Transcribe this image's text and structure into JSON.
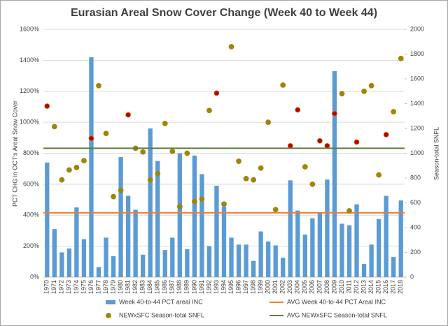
{
  "chart_data": {
    "type": "bar",
    "title": "Eurasian Areal Snow Cover Change (Week 40 to Week 44)",
    "y_label": "PCT CHG in OCT's Areal Snow Cover",
    "y2_label": "Season-total SNFL",
    "categories": [
      "1970",
      "1971",
      "1972",
      "1973",
      "1974",
      "1975",
      "1976",
      "1977",
      "1978",
      "1979",
      "1980",
      "1981",
      "1982",
      "1983",
      "1984",
      "1985",
      "1986",
      "1987",
      "1988",
      "1989",
      "1990",
      "1991",
      "1992",
      "1993",
      "1994",
      "1995",
      "1996",
      "1997",
      "1998",
      "1999",
      "2000",
      "2001",
      "2002",
      "2003",
      "2004",
      "2005",
      "2006",
      "2007",
      "2008",
      "2009",
      "2010",
      "2011",
      "2012",
      "2013",
      "2014",
      "2015",
      "2016",
      "2017",
      "2018"
    ],
    "series": [
      {
        "name": "Week 40-to-44 PCT areal INC",
        "type": "bar",
        "color": "#5b9bd5",
        "values": [
          740,
          310,
          160,
          185,
          450,
          245,
          1420,
          65,
          255,
          135,
          775,
          525,
          435,
          145,
          960,
          750,
          175,
          255,
          800,
          180,
          785,
          665,
          200,
          590,
          455,
          255,
          210,
          210,
          105,
          295,
          230,
          205,
          125,
          625,
          430,
          275,
          380,
          415,
          630,
          1330,
          345,
          335,
          470,
          85,
          210,
          375,
          525,
          130,
          495
        ]
      },
      {
        "name": "AVG Week 40-to-44 PCT Areal INC",
        "type": "hline",
        "color": "#ed7d31",
        "value": 415
      },
      {
        "name": "NEWxSFC Season-total SNFL",
        "type": "scatter",
        "axis": "y2",
        "color": "#8f8f00",
        "colors": [
          "#c00000",
          "#8f8f00",
          "#8f8f00",
          "#8f8f00",
          "#8f8f00",
          "#8f8f00",
          "#c00000",
          "#8f8f00",
          "#8f8f00",
          "#8f8f00",
          "#8f8f00",
          "#c00000",
          "#8f8f00",
          "#8f8f00",
          "#8f8f00",
          "#8f8f00",
          "#8f8f00",
          "#8f8f00",
          "#8f8f00",
          "#8f8f00",
          "#8f8f00",
          "#8f8f00",
          "#8f8f00",
          "#c00000",
          "#8f8f00",
          "#8f8f00",
          "#8f8f00",
          "#8f8f00",
          "#8f8f00",
          "#8f8f00",
          "#8f8f00",
          "#8f8f00",
          "#8f8f00",
          "#c00000",
          "#c00000",
          "#8f8f00",
          "#8f8f00",
          "#c00000",
          "#c00000",
          "#c00000",
          "#8f8f00",
          "#8f8f00",
          "#c00000",
          "#8f8f00",
          "#8f8f00",
          "#8f8f00",
          "#c00000",
          "#8f8f00",
          "#8f8f00"
        ],
        "values": [
          1380,
          1215,
          785,
          865,
          885,
          940,
          1120,
          1545,
          1160,
          650,
          700,
          1310,
          1040,
          1010,
          785,
          835,
          1240,
          1015,
          570,
          1000,
          610,
          630,
          1345,
          1485,
          590,
          1860,
          935,
          795,
          785,
          880,
          1250,
          545,
          1550,
          1060,
          1350,
          890,
          750,
          1100,
          1060,
          1320,
          1480,
          535,
          1090,
          1500,
          1545,
          825,
          1150,
          1335,
          1765
        ]
      },
      {
        "name": "AVG NEWxSFC Season-total SNFL",
        "type": "hline",
        "axis": "y2",
        "color": "#548235",
        "value": 1040
      }
    ],
    "ylim": [
      0,
      1600
    ],
    "yticks": [
      {
        "value": 0,
        "label": "0%"
      },
      {
        "value": 200,
        "label": "200%"
      },
      {
        "value": 400,
        "label": "400%"
      },
      {
        "value": 600,
        "label": "600%"
      },
      {
        "value": 800,
        "label": "800%"
      },
      {
        "value": 1000,
        "label": "1000%"
      },
      {
        "value": 1200,
        "label": "1200%"
      },
      {
        "value": 1400,
        "label": "1400%"
      },
      {
        "value": 1600,
        "label": "1600%"
      }
    ],
    "y2lim": [
      0,
      2000
    ],
    "y2ticks": [
      0,
      200,
      400,
      600,
      800,
      1000,
      1200,
      1400,
      1600,
      1800,
      2000
    ],
    "grid": true
  }
}
